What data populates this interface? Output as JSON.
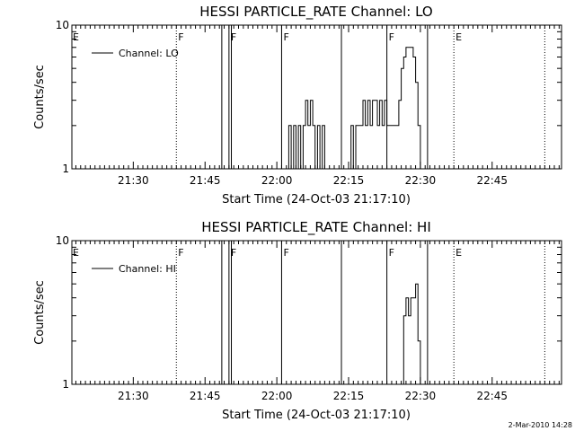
{
  "chart_data": [
    {
      "type": "line",
      "title": "HESSI PARTICLE_RATE Channel: LO",
      "xlabel": "Start Time (24-Oct-03 21:17:10)",
      "ylabel": "Counts/sec",
      "yscale": "log",
      "ylim": [
        1,
        10
      ],
      "y_ticks": [
        "1",
        "10"
      ],
      "x_ticks": [
        "21:30",
        "21:45",
        "22:00",
        "22:15",
        "22:30",
        "22:45"
      ],
      "legend": {
        "label": "Channel: LO",
        "placement": "top-left"
      },
      "grid": false,
      "series": [
        {
          "name": "Channel: LO",
          "x": [
            "22:02:00",
            "22:02:30",
            "22:03:00",
            "22:03:30",
            "22:04:00",
            "22:04:30",
            "22:05:00",
            "22:05:30",
            "22:06:00",
            "22:06:30",
            "22:07:00",
            "22:07:30",
            "22:08:00",
            "22:08:30",
            "22:09:00",
            "22:09:30",
            "22:10:00",
            "22:15:00",
            "22:15:30",
            "22:16:00",
            "22:16:30",
            "22:17:00",
            "22:17:30",
            "22:18:00",
            "22:18:30",
            "22:19:00",
            "22:19:30",
            "22:20:00",
            "22:20:30",
            "22:21:00",
            "22:21:30",
            "22:22:00",
            "22:22:30",
            "22:23:00",
            "22:25:00",
            "22:25:30",
            "22:26:00",
            "22:26:30",
            "22:27:00",
            "22:27:30",
            "22:28:00",
            "22:28:30",
            "22:29:00",
            "22:29:30",
            "22:30:00"
          ],
          "y": [
            1.0,
            2.0,
            1.0,
            2.0,
            1.0,
            2.0,
            1.0,
            2.0,
            3.0,
            2.0,
            3.0,
            2.0,
            1.0,
            2.0,
            1.0,
            2.0,
            1.0,
            1.0,
            2.0,
            1.0,
            2.0,
            2.0,
            2.0,
            3.0,
            2.0,
            3.0,
            2.0,
            3.0,
            3.0,
            2.0,
            3.0,
            2.0,
            3.0,
            2.0,
            2.0,
            3.0,
            5.0,
            6.0,
            7.0,
            7.0,
            7.0,
            6.0,
            4.0,
            2.0,
            1.0
          ]
        }
      ],
      "markers": [
        {
          "label": "E",
          "time": "21:17:10"
        },
        {
          "label": "F",
          "time": "21:39:00"
        },
        {
          "label": "F",
          "time": "21:50:00"
        },
        {
          "label": "F",
          "time": "22:01:00"
        },
        {
          "label": "F",
          "time": "22:23:00"
        },
        {
          "label": "E",
          "time": "22:37:00"
        }
      ]
    },
    {
      "type": "line",
      "title": "HESSI PARTICLE_RATE Channel: HI",
      "xlabel": "Start Time (24-Oct-03 21:17:10)",
      "ylabel": "Counts/sec",
      "yscale": "log",
      "ylim": [
        1,
        10
      ],
      "y_ticks": [
        "1",
        "10"
      ],
      "x_ticks": [
        "21:30",
        "21:45",
        "22:00",
        "22:15",
        "22:30",
        "22:45"
      ],
      "legend": {
        "label": "Channel: HI",
        "placement": "top-left"
      },
      "grid": false,
      "series": [
        {
          "name": "Channel: HI",
          "x": [
            "22:26:00",
            "22:26:30",
            "22:27:00",
            "22:27:30",
            "22:28:00",
            "22:28:30",
            "22:29:00",
            "22:29:30",
            "22:30:00"
          ],
          "y": [
            1.0,
            3.0,
            4.0,
            3.0,
            4.0,
            4.0,
            5.0,
            2.0,
            1.0
          ]
        }
      ],
      "markers": [
        {
          "label": "E",
          "time": "21:17:10"
        },
        {
          "label": "F",
          "time": "21:39:00"
        },
        {
          "label": "F",
          "time": "21:50:00"
        },
        {
          "label": "F",
          "time": "22:01:00"
        },
        {
          "label": "F",
          "time": "22:23:00"
        },
        {
          "label": "E",
          "time": "22:37:00"
        }
      ]
    }
  ],
  "footer_stamp": "2-Mar-2010 14:28"
}
